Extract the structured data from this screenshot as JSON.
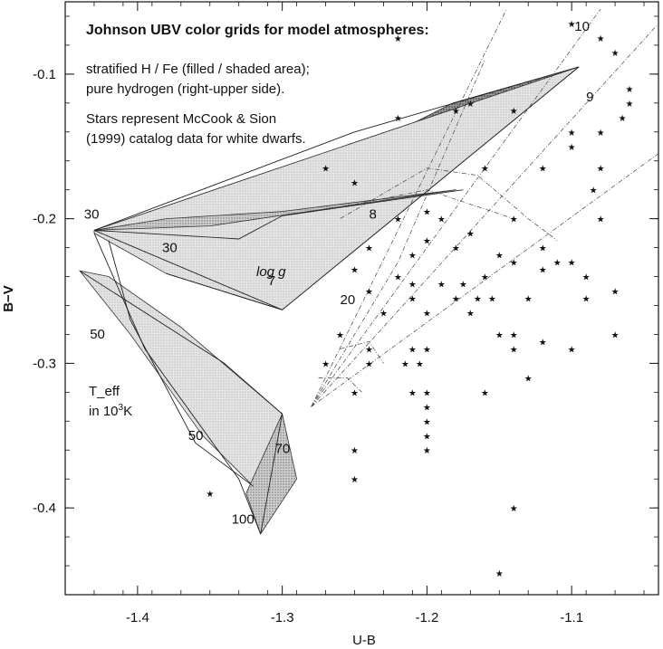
{
  "chart_data": {
    "type": "scatter",
    "title": "Johnson UBV color grids for model atmospheres:",
    "annotations": [
      "stratified H / Fe (filled / shaded area);",
      "pure hydrogen (right-upper side).",
      "Stars represent McCook & Sion",
      "(1999) catalog data for white dwarfs."
    ],
    "xlabel": "U-B",
    "ylabel": "B−V",
    "xlim": [
      -1.45,
      -1.04
    ],
    "ylim": [
      -0.46,
      -0.05
    ],
    "y_inverted": true,
    "xticks": [
      -1.4,
      -1.3,
      -1.2,
      -1.1
    ],
    "xtick_labels": [
      "-1.4",
      "-1.3",
      "-1.2",
      "-1.1"
    ],
    "yticks": [
      -0.1,
      -0.2,
      -0.3,
      -0.4
    ],
    "ytick_labels": [
      "-0.1",
      "-0.2",
      "-0.3",
      "-0.4"
    ],
    "grid_labels": {
      "teff_axis": "T_eff",
      "teff_unit": "in 10",
      "teff_unit_sup": "3",
      "teff_unit_end": "K",
      "logg_axis": "log g",
      "values": [
        {
          "text": "30",
          "x": -1.437,
          "y": -0.2
        },
        {
          "text": "30",
          "x": -1.383,
          "y": -0.223
        },
        {
          "text": "50",
          "x": -1.433,
          "y": -0.283
        },
        {
          "text": "50",
          "x": -1.365,
          "y": -0.353
        },
        {
          "text": "70",
          "x": -1.305,
          "y": -0.362
        },
        {
          "text": "100",
          "x": -1.335,
          "y": -0.411
        },
        {
          "text": "20",
          "x": -1.26,
          "y": -0.259
        },
        {
          "text": "7",
          "x": -1.31,
          "y": -0.246
        },
        {
          "text": "8",
          "x": -1.24,
          "y": -0.2
        },
        {
          "text": "9",
          "x": -1.09,
          "y": -0.119
        },
        {
          "text": "10",
          "x": -1.098,
          "y": -0.07
        }
      ]
    },
    "series": [
      {
        "name": "stratified H / Fe",
        "shaded_regions": [
          {
            "shade": "dark",
            "points": [
              [
                -1.43,
                -0.208
              ],
              [
                -1.095,
                -0.095
              ],
              [
                -1.182,
                -0.12
              ],
              [
                -1.35,
                -0.205
              ]
            ]
          },
          {
            "shade": "light",
            "points": [
              [
                -1.43,
                -0.208
              ],
              [
                -1.095,
                -0.095
              ],
              [
                -1.3,
                -0.263
              ],
              [
                -1.38,
                -0.238
              ],
              [
                -1.43,
                -0.21
              ]
            ]
          },
          {
            "shade": "medium",
            "points": [
              [
                -1.43,
                -0.208
              ],
              [
                -1.38,
                -0.2
              ],
              [
                -1.3,
                -0.195
              ],
              [
                -1.18,
                -0.18
              ],
              [
                -1.35,
                -0.205
              ]
            ]
          },
          {
            "shade": "light",
            "points": [
              [
                -1.44,
                -0.236
              ],
              [
                -1.42,
                -0.24
              ],
              [
                -1.37,
                -0.275
              ],
              [
                -1.3,
                -0.335
              ],
              [
                -1.32,
                -0.385
              ],
              [
                -1.355,
                -0.35
              ],
              [
                -1.405,
                -0.28
              ]
            ]
          },
          {
            "shade": "medium",
            "points": [
              [
                -1.3,
                -0.335
              ],
              [
                -1.29,
                -0.38
              ],
              [
                -1.315,
                -0.418
              ],
              [
                -1.325,
                -0.39
              ]
            ]
          }
        ],
        "grid_lines": [
          [
            [
              -1.43,
              -0.208
            ],
            [
              -1.33,
              -0.214
            ],
            [
              -1.3,
              -0.198
            ],
            [
              -1.175,
              -0.18
            ]
          ],
          [
            [
              -1.43,
              -0.208
            ],
            [
              -1.25,
              -0.14
            ],
            [
              -1.095,
              -0.095
            ]
          ],
          [
            [
              -1.43,
              -0.208
            ],
            [
              -1.3,
              -0.263
            ]
          ],
          [
            [
              -1.38,
              -0.238
            ],
            [
              -1.3,
              -0.263
            ],
            [
              -1.095,
              -0.095
            ]
          ],
          [
            [
              -1.42,
              -0.215
            ],
            [
              -1.405,
              -0.27
            ],
            [
              -1.36,
              -0.355
            ],
            [
              -1.32,
              -0.385
            ]
          ],
          [
            [
              -1.44,
              -0.236
            ],
            [
              -1.34,
              -0.3
            ],
            [
              -1.3,
              -0.335
            ],
            [
              -1.315,
              -0.418
            ]
          ],
          [
            [
              -1.43,
              -0.21
            ],
            [
              -1.395,
              -0.29
            ],
            [
              -1.33,
              -0.38
            ],
            [
              -1.315,
              -0.418
            ]
          ]
        ]
      },
      {
        "name": "pure hydrogen",
        "grid_lines": [
          [
            [
              -1.28,
              -0.33
            ],
            [
              -1.08,
              -0.055
            ]
          ],
          [
            [
              -1.28,
              -0.33
            ],
            [
              -1.04,
              -0.065
            ]
          ],
          [
            [
              -1.28,
              -0.33
            ],
            [
              -1.04,
              -0.155
            ]
          ],
          [
            [
              -1.28,
              -0.33
            ],
            [
              -1.145,
              -0.055
            ]
          ],
          [
            [
              -1.28,
              -0.33
            ],
            [
              -1.22,
              -0.23
            ],
            [
              -1.16,
              -0.09
            ]
          ],
          [
            [
              -1.26,
              -0.2
            ],
            [
              -1.2,
              -0.165
            ],
            [
              -1.165,
              -0.17
            ],
            [
              -1.13,
              -0.2
            ],
            [
              -1.11,
              -0.215
            ]
          ],
          [
            [
              -1.25,
              -0.19
            ],
            [
              -1.2,
              -0.18
            ],
            [
              -1.14,
              -0.2
            ]
          ],
          [
            [
              -1.26,
              -0.29
            ],
            [
              -1.24,
              -0.285
            ],
            [
              -1.23,
              -0.3
            ]
          ],
          [
            [
              -1.275,
              -0.31
            ],
            [
              -1.255,
              -0.31
            ],
            [
              -1.245,
              -0.32
            ]
          ]
        ]
      },
      {
        "name": "McCook & Sion (1999) white dwarfs",
        "points": [
          [
            -1.22,
            -0.075
          ],
          [
            -1.1,
            -0.065
          ],
          [
            -1.08,
            -0.075
          ],
          [
            -1.07,
            -0.085
          ],
          [
            -1.06,
            -0.11
          ],
          [
            -1.06,
            -0.12
          ],
          [
            -1.065,
            -0.13
          ],
          [
            -1.22,
            -0.13
          ],
          [
            -1.18,
            -0.125
          ],
          [
            -1.17,
            -0.12
          ],
          [
            -1.14,
            -0.125
          ],
          [
            -1.1,
            -0.14
          ],
          [
            -1.08,
            -0.14
          ],
          [
            -1.1,
            -0.15
          ],
          [
            -1.16,
            -0.165
          ],
          [
            -1.12,
            -0.165
          ],
          [
            -1.08,
            -0.165
          ],
          [
            -1.085,
            -0.18
          ],
          [
            -1.27,
            -0.165
          ],
          [
            -1.25,
            -0.175
          ],
          [
            -1.2,
            -0.195
          ],
          [
            -1.19,
            -0.2
          ],
          [
            -1.14,
            -0.2
          ],
          [
            -1.08,
            -0.2
          ],
          [
            -1.17,
            -0.21
          ],
          [
            -1.18,
            -0.22
          ],
          [
            -1.2,
            -0.215
          ],
          [
            -1.15,
            -0.225
          ],
          [
            -1.12,
            -0.22
          ],
          [
            -1.11,
            -0.23
          ],
          [
            -1.25,
            -0.235
          ],
          [
            -1.24,
            -0.22
          ],
          [
            -1.22,
            -0.2
          ],
          [
            -1.21,
            -0.225
          ],
          [
            -1.14,
            -0.23
          ],
          [
            -1.12,
            -0.235
          ],
          [
            -1.1,
            -0.23
          ],
          [
            -1.09,
            -0.24
          ],
          [
            -1.16,
            -0.24
          ],
          [
            -1.175,
            -0.245
          ],
          [
            -1.19,
            -0.245
          ],
          [
            -1.21,
            -0.245
          ],
          [
            -1.22,
            -0.24
          ],
          [
            -1.24,
            -0.25
          ],
          [
            -1.21,
            -0.255
          ],
          [
            -1.18,
            -0.255
          ],
          [
            -1.165,
            -0.255
          ],
          [
            -1.155,
            -0.255
          ],
          [
            -1.13,
            -0.255
          ],
          [
            -1.07,
            -0.25
          ],
          [
            -1.09,
            -0.255
          ],
          [
            -1.2,
            -0.265
          ],
          [
            -1.23,
            -0.265
          ],
          [
            -1.17,
            -0.265
          ],
          [
            -1.14,
            -0.28
          ],
          [
            -1.26,
            -0.28
          ],
          [
            -1.24,
            -0.29
          ],
          [
            -1.21,
            -0.29
          ],
          [
            -1.2,
            -0.29
          ],
          [
            -1.15,
            -0.28
          ],
          [
            -1.12,
            -0.285
          ],
          [
            -1.07,
            -0.28
          ],
          [
            -1.27,
            -0.3
          ],
          [
            -1.24,
            -0.3
          ],
          [
            -1.215,
            -0.3
          ],
          [
            -1.205,
            -0.3
          ],
          [
            -1.14,
            -0.29
          ],
          [
            -1.1,
            -0.29
          ],
          [
            -1.25,
            -0.32
          ],
          [
            -1.21,
            -0.32
          ],
          [
            -1.2,
            -0.32
          ],
          [
            -1.16,
            -0.32
          ],
          [
            -1.13,
            -0.31
          ],
          [
            -1.2,
            -0.33
          ],
          [
            -1.2,
            -0.34
          ],
          [
            -1.2,
            -0.35
          ],
          [
            -1.25,
            -0.36
          ],
          [
            -1.2,
            -0.36
          ],
          [
            -1.25,
            -0.38
          ],
          [
            -1.35,
            -0.39
          ],
          [
            -1.14,
            -0.4
          ],
          [
            -1.15,
            -0.445
          ]
        ]
      }
    ],
    "legend": "none",
    "grid": false
  }
}
